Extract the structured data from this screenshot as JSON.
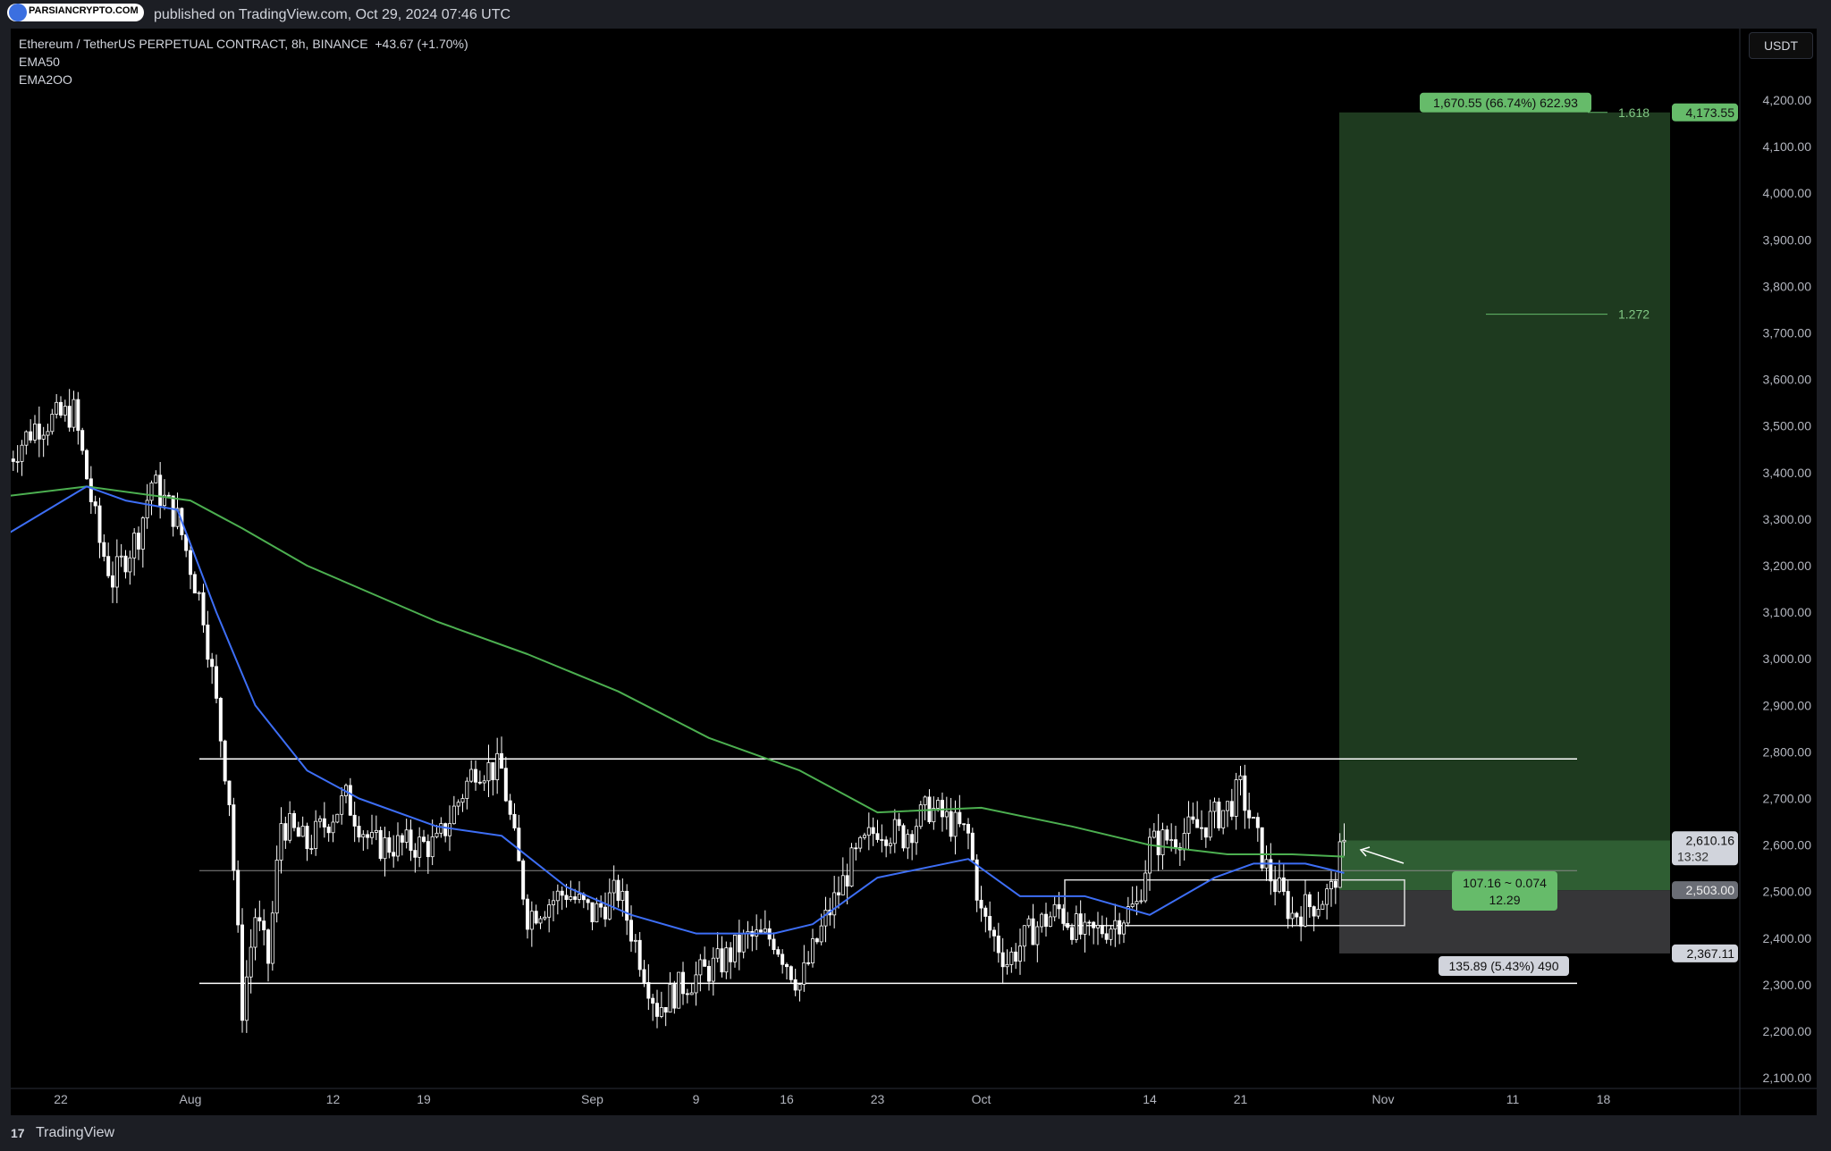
{
  "header": {
    "watermark": "PARSIANCRYPTO.COM",
    "published": "published on TradingView.com, Oct 29, 2024 07:46 UTC"
  },
  "legend": {
    "symbol": "Ethereum / TetherUS PERPETUAL CONTRACT, 8h, BINANCE",
    "change": "+43.67 (+1.70%)",
    "ema1": "EMA50",
    "ema2": "EMA2OO"
  },
  "currency_button": "USDT",
  "footer": {
    "brand": "TradingView",
    "logo": "17"
  },
  "colors": {
    "ema50": "#3d6ef5",
    "ema200": "#4caf50",
    "profit": "#66bb6a",
    "candle": "#ffffff"
  },
  "chart_data": {
    "type": "candlestick",
    "price_ticks": [
      "2,100.00",
      "2,200.00",
      "2,300.00",
      "2,400.00",
      "2,500.00",
      "2,600.00",
      "2,700.00",
      "2,800.00",
      "2,900.00",
      "3,000.00",
      "3,100.00",
      "3,200.00",
      "3,300.00",
      "3,400.00",
      "3,500.00",
      "3,600.00",
      "3,700.00",
      "3,800.00",
      "3,900.00",
      "4,000.00",
      "4,100.00",
      "4,200.00"
    ],
    "ylim": [
      2100,
      4200
    ],
    "time_ticks": [
      {
        "label": "22",
        "date": "2024-07-22"
      },
      {
        "label": "Aug",
        "date": "2024-08-01"
      },
      {
        "label": "12",
        "date": "2024-08-12"
      },
      {
        "label": "19",
        "date": "2024-08-19"
      },
      {
        "label": "Sep",
        "date": "2024-09-01"
      },
      {
        "label": "9",
        "date": "2024-09-09"
      },
      {
        "label": "16",
        "date": "2024-09-16"
      },
      {
        "label": "23",
        "date": "2024-09-23"
      },
      {
        "label": "Oct",
        "date": "2024-10-01"
      },
      {
        "label": "14",
        "date": "2024-10-14"
      },
      {
        "label": "21",
        "date": "2024-10-21"
      },
      {
        "label": "Nov",
        "date": "2024-11-01"
      },
      {
        "label": "11",
        "date": "2024-11-11"
      },
      {
        "label": "18",
        "date": "2024-11-18"
      }
    ],
    "close_path": [
      [
        "2024-07-18",
        3430
      ],
      [
        "2024-07-20",
        3500
      ],
      [
        "2024-07-23",
        3530
      ],
      [
        "2024-07-25",
        3250
      ],
      [
        "2024-07-26",
        3170
      ],
      [
        "2024-07-28",
        3270
      ],
      [
        "2024-07-29",
        3380
      ],
      [
        "2024-07-31",
        3300
      ],
      [
        "2024-08-02",
        3100
      ],
      [
        "2024-08-03",
        2900
      ],
      [
        "2024-08-04",
        2700
      ],
      [
        "2024-08-05",
        2250
      ],
      [
        "2024-08-06",
        2450
      ],
      [
        "2024-08-07",
        2350
      ],
      [
        "2024-08-08",
        2650
      ],
      [
        "2024-08-10",
        2600
      ],
      [
        "2024-08-13",
        2700
      ],
      [
        "2024-08-15",
        2600
      ],
      [
        "2024-08-18",
        2600
      ],
      [
        "2024-08-20",
        2600
      ],
      [
        "2024-08-23",
        2770
      ],
      [
        "2024-08-25",
        2760
      ],
      [
        "2024-08-27",
        2450
      ],
      [
        "2024-08-30",
        2500
      ],
      [
        "2024-09-01",
        2450
      ],
      [
        "2024-09-03",
        2500
      ],
      [
        "2024-09-06",
        2250
      ],
      [
        "2024-09-08",
        2300
      ],
      [
        "2024-09-11",
        2350
      ],
      [
        "2024-09-13",
        2400
      ],
      [
        "2024-09-15",
        2400
      ],
      [
        "2024-09-17",
        2300
      ],
      [
        "2024-09-19",
        2440
      ],
      [
        "2024-09-21",
        2560
      ],
      [
        "2024-09-23",
        2640
      ],
      [
        "2024-09-25",
        2620
      ],
      [
        "2024-09-27",
        2680
      ],
      [
        "2024-09-30",
        2620
      ],
      [
        "2024-10-01",
        2450
      ],
      [
        "2024-10-03",
        2350
      ],
      [
        "2024-10-05",
        2420
      ],
      [
        "2024-10-07",
        2460
      ],
      [
        "2024-10-09",
        2400
      ],
      [
        "2024-10-11",
        2430
      ],
      [
        "2024-10-13",
        2470
      ],
      [
        "2024-10-14",
        2600
      ],
      [
        "2024-10-16",
        2620
      ],
      [
        "2024-10-18",
        2640
      ],
      [
        "2024-10-20",
        2680
      ],
      [
        "2024-10-21",
        2720
      ],
      [
        "2024-10-23",
        2550
      ],
      [
        "2024-10-25",
        2450
      ],
      [
        "2024-10-27",
        2480
      ],
      [
        "2024-10-28",
        2500
      ],
      [
        "2024-10-29",
        2610
      ]
    ],
    "ema50": [
      [
        "2024-07-18",
        3270
      ],
      [
        "2024-07-24",
        3370
      ],
      [
        "2024-07-27",
        3340
      ],
      [
        "2024-07-31",
        3320
      ],
      [
        "2024-08-03",
        3100
      ],
      [
        "2024-08-06",
        2900
      ],
      [
        "2024-08-10",
        2760
      ],
      [
        "2024-08-14",
        2700
      ],
      [
        "2024-08-20",
        2640
      ],
      [
        "2024-08-25",
        2620
      ],
      [
        "2024-08-30",
        2510
      ],
      [
        "2024-09-04",
        2450
      ],
      [
        "2024-09-09",
        2410
      ],
      [
        "2024-09-15",
        2410
      ],
      [
        "2024-09-18",
        2430
      ],
      [
        "2024-09-23",
        2530
      ],
      [
        "2024-09-30",
        2570
      ],
      [
        "2024-10-04",
        2490
      ],
      [
        "2024-10-09",
        2490
      ],
      [
        "2024-10-14",
        2450
      ],
      [
        "2024-10-19",
        2530
      ],
      [
        "2024-10-22",
        2560
      ],
      [
        "2024-10-26",
        2560
      ],
      [
        "2024-10-29",
        2540
      ]
    ],
    "ema200": [
      [
        "2024-07-18",
        3350
      ],
      [
        "2024-07-24",
        3370
      ],
      [
        "2024-08-01",
        3340
      ],
      [
        "2024-08-05",
        3280
      ],
      [
        "2024-08-10",
        3200
      ],
      [
        "2024-08-20",
        3080
      ],
      [
        "2024-08-27",
        3010
      ],
      [
        "2024-09-03",
        2930
      ],
      [
        "2024-09-10",
        2830
      ],
      [
        "2024-09-17",
        2760
      ],
      [
        "2024-09-23",
        2670
      ],
      [
        "2024-10-01",
        2680
      ],
      [
        "2024-10-08",
        2640
      ],
      [
        "2024-10-14",
        2600
      ],
      [
        "2024-10-20",
        2580
      ],
      [
        "2024-10-25",
        2580
      ],
      [
        "2024-10-29",
        2575
      ]
    ],
    "horizontal_levels": [
      2785,
      2545,
      2303
    ],
    "position": {
      "target": 4173.55,
      "entry": 2503.0,
      "stop": 2367.11,
      "current": 2610.16,
      "countdown": "13:32",
      "target_label": "1,670.55 (66.74%) 622.93",
      "stop_label": "135.89 (5.43%) 490",
      "mid_label_1": "107.16 ~ 0.074",
      "mid_label_2": "12.29",
      "target_axis": "4,173.55",
      "entry_axis": "2,503.00",
      "stop_axis": "2,367.11",
      "current_axis": "2,610.16"
    },
    "fib": [
      {
        "label": "1.618",
        "price": 4173.55
      },
      {
        "label": "1.272",
        "price": 3740
      }
    ],
    "range_box": {
      "top": 2525,
      "bottom": 2427
    }
  }
}
